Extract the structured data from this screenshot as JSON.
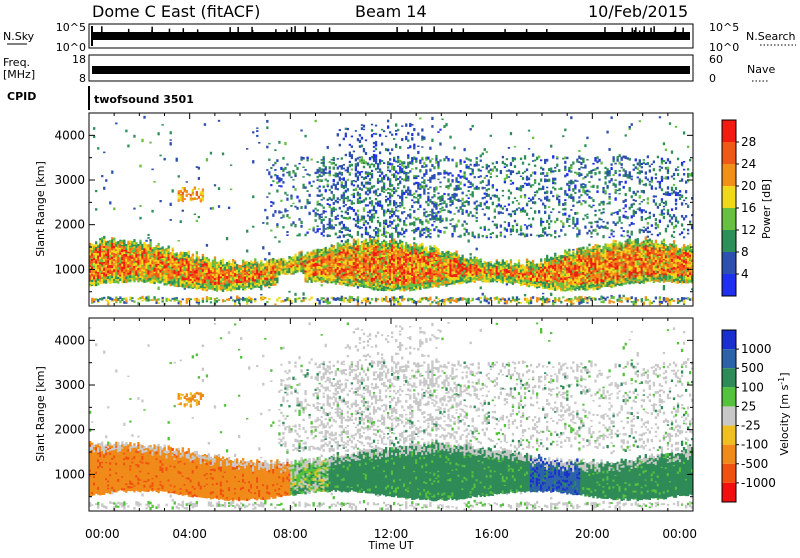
{
  "header": {
    "station": "Dome C East (fitACF)",
    "beam": "Beam 14",
    "date": "10/Feb/2015"
  },
  "strips": {
    "nsky_label": "N.Sky",
    "nsky_ticks": [
      "10^5",
      "10^0"
    ],
    "nsearch_label": "N.Search",
    "nsearch_ticks": [
      "10^5",
      "10^0"
    ],
    "freq_label": "Freq.",
    "freq_unit": "[MHz]",
    "freq_ticks": [
      "18",
      "8"
    ],
    "nave_label": "Nave",
    "nave_ticks": [
      "60",
      "0"
    ],
    "cpid_label": "CPID",
    "cpid_value": "twofsound 3501"
  },
  "time_axis": {
    "label": "Time UT",
    "ticks": [
      "00:00",
      "04:00",
      "08:00",
      "12:00",
      "16:00",
      "20:00",
      "00:00"
    ]
  },
  "colors": {
    "power_scale": [
      "#1f2ff0",
      "#2c4fb0",
      "#2f8f58",
      "#68c040",
      "#f0d81c",
      "#f09018",
      "#f05818",
      "#f01c12"
    ],
    "velocity_scale": [
      "#1a2fd0",
      "#2c63a8",
      "#2e8a56",
      "#55c23e",
      "#c8c8c8",
      "#f0c020",
      "#f08a18",
      "#f05010",
      "#f01010"
    ]
  },
  "chart_data": [
    {
      "type": "heatmap",
      "title": "Power",
      "ylabel": "Slant Range [km]",
      "xlabel": "",
      "x_range_hours": [
        0,
        24
      ],
      "ylim": [
        180,
        4500
      ],
      "y_ticks": [
        1000,
        2000,
        3000,
        4000
      ],
      "colorbar": {
        "label": "Power [dB]",
        "ticks": [
          4,
          8,
          12,
          16,
          20,
          24,
          28
        ],
        "range": [
          0,
          32
        ]
      },
      "features": [
        {
          "name": "main-echo-band",
          "time_hours": [
            0,
            24
          ],
          "range_km": [
            500,
            1500
          ],
          "typical_value": 24
        },
        {
          "name": "upper-scatter",
          "time_hours": [
            7,
            24
          ],
          "range_km": [
            1800,
            3500
          ],
          "typical_value": 8
        },
        {
          "name": "high-range-patches",
          "time_hours": [
            10,
            14
          ],
          "range_km": [
            3500,
            4300
          ],
          "typical_value": 6
        }
      ]
    },
    {
      "type": "heatmap",
      "title": "Velocity",
      "ylabel": "Slant Range [km]",
      "xlabel": "Time UT",
      "x_range_hours": [
        0,
        24
      ],
      "ylim": [
        180,
        4500
      ],
      "y_ticks": [
        1000,
        2000,
        3000,
        4000
      ],
      "colorbar": {
        "label": "Velocity [m s^-1]",
        "ticks": [
          1000,
          500,
          100,
          25,
          -25,
          -100,
          -500,
          -1000
        ]
      },
      "features": [
        {
          "name": "westward-flow-band",
          "time_hours": [
            0,
            8
          ],
          "range_km": [
            400,
            1500
          ],
          "typical_value": -300
        },
        {
          "name": "eastward-flow-band",
          "time_hours": [
            9,
            24
          ],
          "range_km": [
            600,
            1500
          ],
          "typical_value": 300
        },
        {
          "name": "ground-scatter-region",
          "time_hours": [
            8,
            22
          ],
          "range_km": [
            1500,
            3500
          ],
          "typical_value": 0
        }
      ]
    }
  ]
}
